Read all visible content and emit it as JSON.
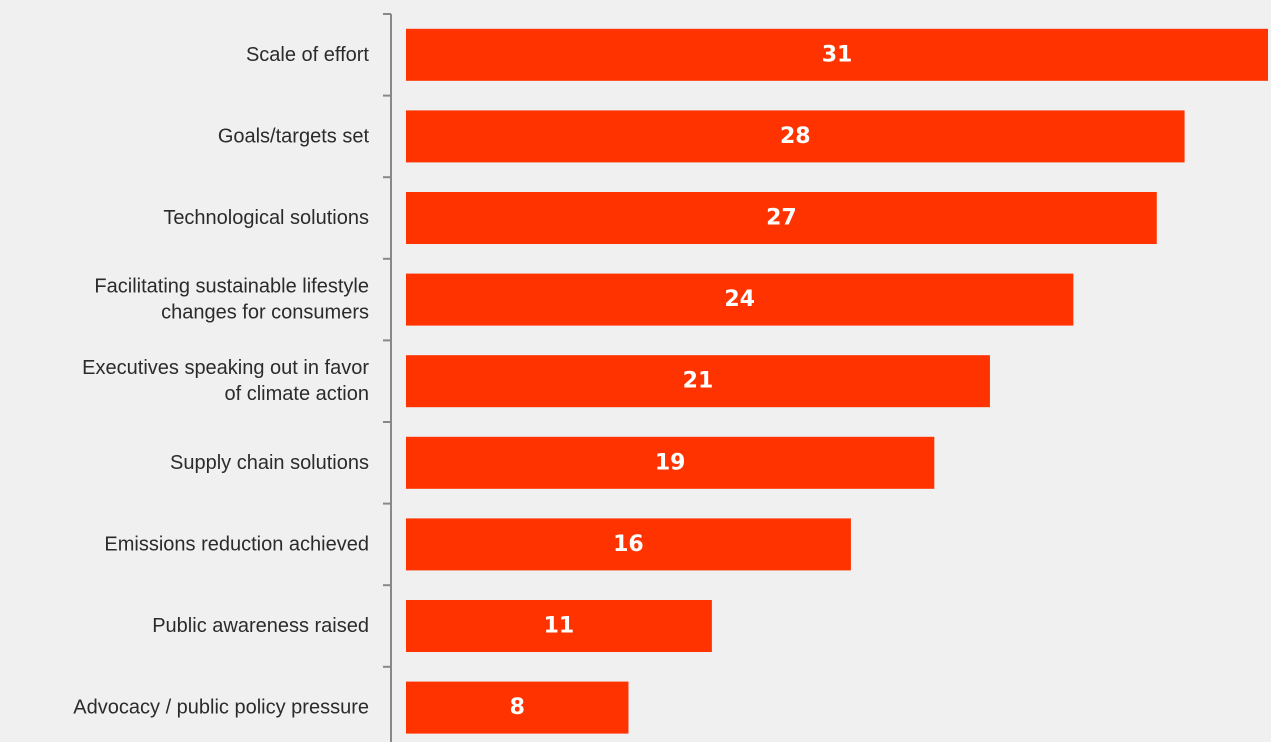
{
  "colors": {
    "background": "#f0f0f0",
    "bar": "#ff3300",
    "axis": "#888888",
    "label_text": "#2b2b2b",
    "value_text": "#ffffff"
  },
  "chart_data": {
    "type": "bar",
    "orientation": "horizontal",
    "title": "",
    "xlabel": "",
    "ylabel": "",
    "xlim": [
      0,
      31
    ],
    "grid": false,
    "data_labels": "inside-center",
    "categories": [
      [
        "Scale of effort"
      ],
      [
        "Goals/targets set"
      ],
      [
        "Technological solutions"
      ],
      [
        "Facilitating sustainable lifestyle",
        "changes for consumers"
      ],
      [
        "Executives speaking out in favor",
        "of climate action"
      ],
      [
        "Supply chain solutions"
      ],
      [
        "Emissions reduction achieved"
      ],
      [
        "Public awareness raised"
      ],
      [
        "Advocacy / public policy pressure"
      ]
    ],
    "values": [
      31,
      28,
      27,
      24,
      21,
      19,
      16,
      11,
      8
    ]
  }
}
